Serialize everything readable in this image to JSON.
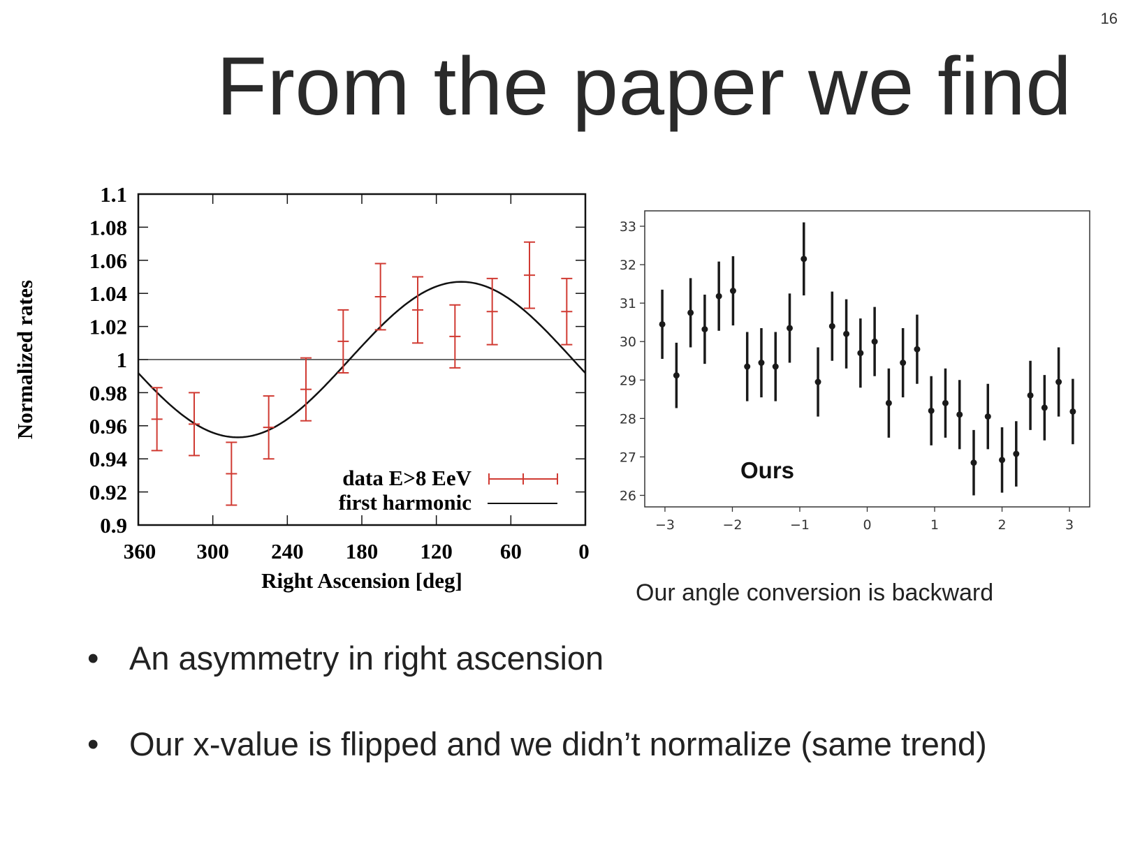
{
  "slide": {
    "number": "16",
    "title": "From the paper we find",
    "caption": "Our angle conversion is backward",
    "bullets": [
      "An asymmetry in right ascension",
      "Our x-value is flipped and we didn’t normalize (same trend)"
    ]
  },
  "chart_data": [
    {
      "type": "scatter",
      "title": "",
      "xlabel": "Right Ascension [deg]",
      "ylabel": "Normalized rates",
      "xlim": [
        360,
        0
      ],
      "ylim": [
        0.9,
        1.1
      ],
      "x_ticks": [
        "360",
        "300",
        "240",
        "180",
        "120",
        "60",
        "0"
      ],
      "y_ticks": [
        "1.1",
        "1.08",
        "1.06",
        "1.04",
        "1.02",
        "1",
        "0.98",
        "0.96",
        "0.94",
        "0.92",
        "0.9"
      ],
      "reference_line": 1,
      "legend_position": "bottom-right",
      "colors": {
        "data": "#d03a32",
        "harmonic": "#111111"
      },
      "series": [
        {
          "name": "data E>8 EeV",
          "kind": "errorbar",
          "x": [
            345,
            315,
            285,
            255,
            225,
            195,
            165,
            135,
            105,
            75,
            45,
            15
          ],
          "y": [
            0.964,
            0.961,
            0.931,
            0.959,
            0.982,
            1.011,
            1.038,
            1.03,
            1.014,
            1.029,
            1.051,
            1.029
          ],
          "yerr": [
            0.019,
            0.019,
            0.019,
            0.019,
            0.019,
            0.019,
            0.02,
            0.02,
            0.019,
            0.02,
            0.02,
            0.02
          ]
        },
        {
          "name": "first harmonic",
          "kind": "curve",
          "amplitude": 0.047,
          "phase_deg": 100
        }
      ]
    },
    {
      "type": "scatter",
      "title": "",
      "annotation": "Ours",
      "xlabel": "",
      "ylabel": "",
      "xlim": [
        -3.3,
        3.3
      ],
      "ylim": [
        25.7,
        33.4
      ],
      "x_ticks": [
        -3,
        -2,
        -1,
        0,
        1,
        2,
        3
      ],
      "x_tick_labels": [
        "−3",
        "−2",
        "−1",
        "0",
        "1",
        "2",
        "3"
      ],
      "y_ticks": [
        26,
        27,
        28,
        29,
        30,
        31,
        32,
        33
      ],
      "colors": {
        "points": "#1a1a1a"
      },
      "series": [
        {
          "kind": "errorbar",
          "x": [
            -3.04,
            -2.83,
            -2.62,
            -2.41,
            -2.2,
            -1.99,
            -1.78,
            -1.57,
            -1.36,
            -1.15,
            -0.94,
            -0.73,
            -0.52,
            -0.31,
            -0.1,
            0.11,
            0.32,
            0.53,
            0.74,
            0.95,
            1.16,
            1.37,
            1.58,
            1.79,
            2.0,
            2.21,
            2.42,
            2.63,
            2.84,
            3.05
          ],
          "y": [
            30.45,
            29.12,
            30.75,
            30.32,
            31.18,
            31.32,
            29.35,
            29.45,
            29.35,
            30.35,
            32.15,
            28.95,
            30.4,
            30.2,
            29.7,
            30.0,
            28.4,
            29.45,
            29.8,
            28.2,
            28.4,
            28.1,
            26.85,
            28.05,
            26.92,
            27.08,
            28.6,
            28.28,
            28.95,
            28.18
          ],
          "yerr": [
            0.9,
            0.85,
            0.9,
            0.9,
            0.9,
            0.9,
            0.9,
            0.9,
            0.9,
            0.9,
            0.95,
            0.9,
            0.9,
            0.9,
            0.9,
            0.9,
            0.9,
            0.9,
            0.9,
            0.9,
            0.9,
            0.9,
            0.85,
            0.85,
            0.85,
            0.85,
            0.9,
            0.85,
            0.9,
            0.85
          ]
        }
      ]
    }
  ]
}
